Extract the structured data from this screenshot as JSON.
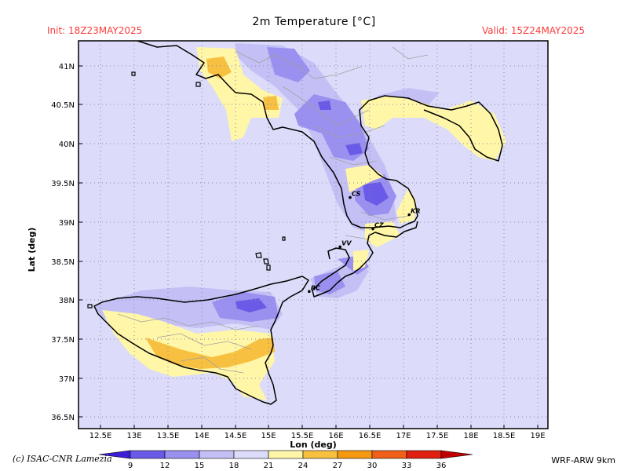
{
  "header": {
    "title": "2m Temperature [°C]",
    "init": "Init: 18Z23MAY2025",
    "valid": "Valid: 15Z24MAY2025"
  },
  "axes": {
    "x_label": "Lon (deg)",
    "y_label": "Lat (deg)",
    "lon_ticks": [
      "12.5E",
      "13E",
      "13.5E",
      "14E",
      "14.5E",
      "15E",
      "15.5E",
      "16E",
      "16.5E",
      "17E",
      "17.5E",
      "18E",
      "18.5E",
      "19E"
    ],
    "lat_ticks": [
      "41N",
      "40.5N",
      "40N",
      "39.5N",
      "39N",
      "38.5N",
      "38N",
      "37.5N",
      "37N",
      "36.5N"
    ],
    "lon_range": [
      12.2,
      19.2
    ],
    "lat_range": [
      36.35,
      41.3
    ]
  },
  "cities": [
    {
      "label": "CS",
      "lon": 16.25,
      "lat": 39.3
    },
    {
      "label": "KR",
      "lon": 17.13,
      "lat": 39.08
    },
    {
      "label": "CZ",
      "lon": 16.59,
      "lat": 38.9
    },
    {
      "label": "VV",
      "lon": 16.1,
      "lat": 38.67
    },
    {
      "label": "RC",
      "lon": 15.64,
      "lat": 38.1
    }
  ],
  "colorbar": {
    "labels": [
      "9",
      "12",
      "15",
      "18",
      "21",
      "24",
      "27",
      "30",
      "33",
      "36"
    ],
    "colors": [
      "#3a1fd6",
      "#6a5ae8",
      "#9a90f0",
      "#c4c0f6",
      "#dcdcfa",
      "#fff6a8",
      "#f8c040",
      "#f59a10",
      "#f06018",
      "#e02010",
      "#c00000"
    ]
  },
  "map_colors": {
    "background": "#dcdcfa",
    "band_18": "#c4c0f6",
    "band_15": "#9a90f0",
    "band_12": "#6a5ae8",
    "band_24": "#fff6a8",
    "band_27": "#f8c040",
    "coast": "#000000",
    "borders": "#a0a0a0",
    "grid": "#8a8aa8"
  },
  "footer": {
    "credit": "(c) ISAC-CNR Lamezia",
    "model": "WRF-ARW 9km"
  }
}
